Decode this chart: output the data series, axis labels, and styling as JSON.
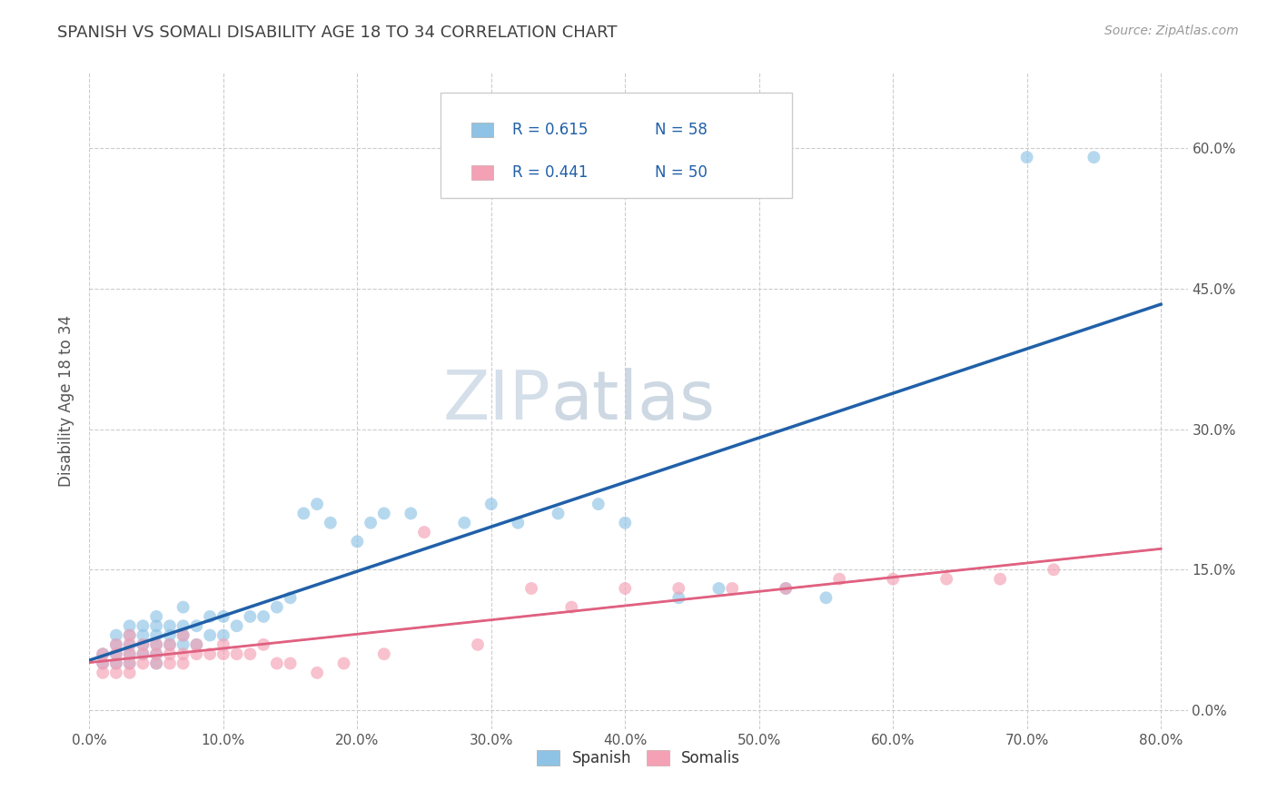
{
  "title": "SPANISH VS SOMALI DISABILITY AGE 18 TO 34 CORRELATION CHART",
  "source": "Source: ZipAtlas.com",
  "ylabel": "Disability Age 18 to 34",
  "xlim": [
    0.0,
    0.82
  ],
  "ylim": [
    -0.02,
    0.68
  ],
  "xticks": [
    0.0,
    0.1,
    0.2,
    0.3,
    0.4,
    0.5,
    0.6,
    0.7,
    0.8
  ],
  "xticklabels": [
    "0.0%",
    "10.0%",
    "20.0%",
    "30.0%",
    "40.0%",
    "50.0%",
    "60.0%",
    "70.0%",
    "80.0%"
  ],
  "yticks": [
    0.0,
    0.15,
    0.3,
    0.45,
    0.6
  ],
  "yticklabels": [
    "0.0%",
    "15.0%",
    "30.0%",
    "45.0%",
    "60.0%"
  ],
  "legend_r_spanish": "R = 0.615",
  "legend_n_spanish": "N = 58",
  "legend_r_somali": "R = 0.441",
  "legend_n_somali": "N = 50",
  "spanish_color": "#8ec3e6",
  "somali_color": "#f4a0b5",
  "spanish_line_color": "#2060a8",
  "somali_line_color": "#e06080",
  "legend_text_color": "#2060a8",
  "title_color": "#404040",
  "watermark_color": "#d0dce8",
  "background_color": "#ffffff",
  "grid_color": "#cccccc",
  "spanish_scatter_x": [
    0.01,
    0.01,
    0.02,
    0.02,
    0.02,
    0.02,
    0.03,
    0.03,
    0.03,
    0.03,
    0.03,
    0.04,
    0.04,
    0.04,
    0.04,
    0.05,
    0.05,
    0.05,
    0.05,
    0.05,
    0.05,
    0.06,
    0.06,
    0.06,
    0.07,
    0.07,
    0.07,
    0.07,
    0.08,
    0.08,
    0.09,
    0.09,
    0.1,
    0.1,
    0.11,
    0.12,
    0.13,
    0.14,
    0.15,
    0.16,
    0.17,
    0.18,
    0.2,
    0.21,
    0.22,
    0.24,
    0.28,
    0.3,
    0.32,
    0.35,
    0.38,
    0.4,
    0.44,
    0.47,
    0.52,
    0.55,
    0.7,
    0.75
  ],
  "spanish_scatter_y": [
    0.05,
    0.06,
    0.05,
    0.06,
    0.07,
    0.08,
    0.05,
    0.06,
    0.07,
    0.08,
    0.09,
    0.06,
    0.07,
    0.08,
    0.09,
    0.05,
    0.06,
    0.07,
    0.08,
    0.09,
    0.1,
    0.07,
    0.08,
    0.09,
    0.07,
    0.08,
    0.09,
    0.11,
    0.07,
    0.09,
    0.08,
    0.1,
    0.08,
    0.1,
    0.09,
    0.1,
    0.1,
    0.11,
    0.12,
    0.21,
    0.22,
    0.2,
    0.18,
    0.2,
    0.21,
    0.21,
    0.2,
    0.22,
    0.2,
    0.21,
    0.22,
    0.2,
    0.12,
    0.13,
    0.13,
    0.12,
    0.59,
    0.59
  ],
  "somali_scatter_x": [
    0.01,
    0.01,
    0.01,
    0.02,
    0.02,
    0.02,
    0.02,
    0.03,
    0.03,
    0.03,
    0.03,
    0.03,
    0.04,
    0.04,
    0.04,
    0.05,
    0.05,
    0.05,
    0.06,
    0.06,
    0.06,
    0.07,
    0.07,
    0.07,
    0.08,
    0.08,
    0.09,
    0.1,
    0.1,
    0.11,
    0.12,
    0.13,
    0.14,
    0.15,
    0.17,
    0.19,
    0.22,
    0.25,
    0.29,
    0.33,
    0.36,
    0.4,
    0.44,
    0.48,
    0.52,
    0.56,
    0.6,
    0.64,
    0.68,
    0.72
  ],
  "somali_scatter_y": [
    0.04,
    0.05,
    0.06,
    0.04,
    0.05,
    0.06,
    0.07,
    0.04,
    0.05,
    0.06,
    0.07,
    0.08,
    0.05,
    0.06,
    0.07,
    0.05,
    0.06,
    0.07,
    0.05,
    0.06,
    0.07,
    0.05,
    0.06,
    0.08,
    0.06,
    0.07,
    0.06,
    0.07,
    0.06,
    0.06,
    0.06,
    0.07,
    0.05,
    0.05,
    0.04,
    0.05,
    0.06,
    0.19,
    0.07,
    0.13,
    0.11,
    0.13,
    0.13,
    0.13,
    0.13,
    0.14,
    0.14,
    0.14,
    0.14,
    0.15
  ]
}
